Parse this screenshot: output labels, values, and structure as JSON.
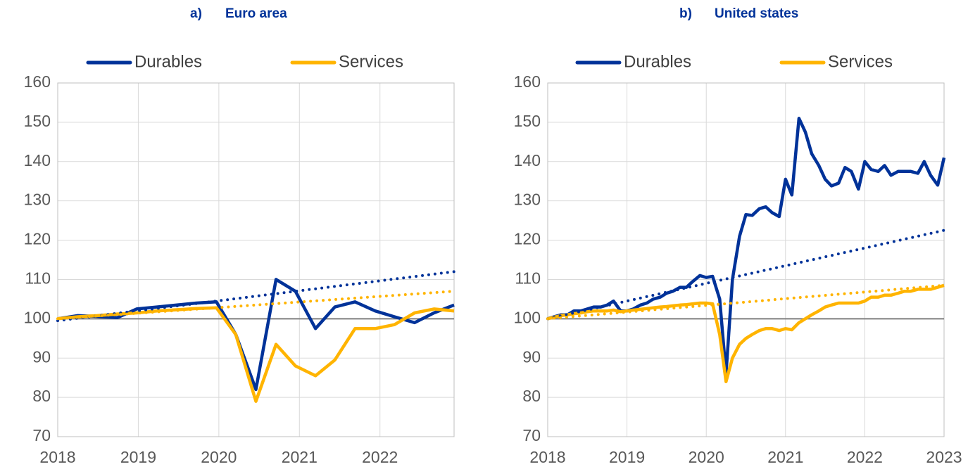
{
  "chart_data": [
    {
      "type": "line",
      "label": "a)",
      "title": "Euro area",
      "x": [
        2018,
        2018.25,
        2018.49,
        2018.74,
        2018.98,
        2019.23,
        2019.48,
        2019.72,
        2019.97,
        2020.21,
        2020.46,
        2020.71,
        2020.95,
        2021.2,
        2021.44,
        2021.69,
        2021.94,
        2022.18,
        2022.43,
        2022.67,
        2022.92
      ],
      "series": [
        {
          "name": "Durables",
          "color": "#003299",
          "values": [
            100,
            100.8,
            100.6,
            100.3,
            102.5,
            103,
            103.5,
            104,
            104.3,
            96,
            82,
            110,
            107,
            97.5,
            103,
            104.3,
            102,
            100.5,
            99,
            101.5,
            103.5
          ]
        },
        {
          "name": "Services",
          "color": "#FFB400",
          "values": [
            100,
            100.5,
            100.8,
            101.2,
            101.5,
            102,
            102.3,
            102.6,
            102.8,
            96,
            79,
            93.5,
            88,
            85.5,
            89.5,
            97.5,
            97.5,
            98.5,
            101.5,
            102.5,
            102
          ]
        },
        {
          "color": "#003299",
          "dash": "dotted",
          "x": [
            2018,
            2022.92
          ],
          "values": [
            99.5,
            112
          ]
        },
        {
          "color": "#FFB400",
          "dash": "dotted",
          "x": [
            2018,
            2022.92
          ],
          "values": [
            100,
            107
          ]
        }
      ],
      "xlim": [
        2018,
        2022.92
      ],
      "xticks": [
        2018,
        2019,
        2020,
        2021,
        2022
      ],
      "ylim": [
        70,
        160
      ],
      "yticks": [
        70,
        80,
        90,
        100,
        110,
        120,
        130,
        140,
        150,
        160
      ],
      "baseline": 100,
      "grid": true
    },
    {
      "type": "line",
      "label": "b)",
      "title": "United states",
      "x": [
        2018,
        2018.08,
        2018.17,
        2018.25,
        2018.33,
        2018.42,
        2018.5,
        2018.58,
        2018.67,
        2018.75,
        2018.83,
        2018.92,
        2019,
        2019.08,
        2019.17,
        2019.25,
        2019.33,
        2019.42,
        2019.5,
        2019.58,
        2019.67,
        2019.75,
        2019.83,
        2019.92,
        2020,
        2020.08,
        2020.17,
        2020.25,
        2020.33,
        2020.42,
        2020.5,
        2020.58,
        2020.67,
        2020.75,
        2020.83,
        2020.92,
        2021,
        2021.08,
        2021.17,
        2021.25,
        2021.33,
        2021.42,
        2021.5,
        2021.58,
        2021.67,
        2021.75,
        2021.83,
        2021.92,
        2022,
        2022.08,
        2022.17,
        2022.25,
        2022.33,
        2022.42,
        2022.5,
        2022.58,
        2022.67,
        2022.75,
        2022.83,
        2022.92,
        2023
      ],
      "series": [
        {
          "name": "Durables",
          "color": "#003299",
          "values": [
            100,
            100.5,
            101,
            101,
            102,
            102,
            102.5,
            103,
            103,
            103.5,
            104.5,
            102,
            102,
            102.5,
            103.5,
            104,
            105,
            105.5,
            106.5,
            107,
            108,
            108,
            109.5,
            111,
            110.5,
            110.8,
            105,
            86,
            110,
            121,
            126.5,
            126.3,
            128,
            128.5,
            127,
            126,
            135.5,
            131.5,
            151,
            147.5,
            142,
            139,
            135.5,
            133.8,
            134.5,
            138.5,
            137.5,
            133,
            140,
            138,
            137.5,
            139,
            136.5,
            137.5,
            137.5,
            137.5,
            137,
            140,
            136.5,
            134,
            141
          ]
        },
        {
          "name": "Services",
          "color": "#FFB400",
          "values": [
            100,
            100.4,
            100.8,
            101,
            101.3,
            101.5,
            101.8,
            102,
            102,
            102,
            102.2,
            101.8,
            102,
            102.2,
            102.4,
            102.6,
            102.8,
            103,
            103.1,
            103.3,
            103.5,
            103.6,
            103.8,
            104,
            104,
            103.8,
            96,
            84,
            90,
            93.5,
            95,
            96,
            97,
            97.5,
            97.5,
            97,
            97.5,
            97.2,
            99,
            100,
            101,
            102,
            103,
            103.5,
            104,
            104,
            104,
            104,
            104.5,
            105.5,
            105.5,
            106,
            106,
            106.5,
            107,
            107,
            107.5,
            107.5,
            107.5,
            108,
            108.5
          ]
        },
        {
          "color": "#003299",
          "dash": "dotted",
          "x": [
            2018,
            2023
          ],
          "values": [
            100,
            122.5
          ]
        },
        {
          "color": "#FFB400",
          "dash": "dotted",
          "x": [
            2018,
            2023
          ],
          "values": [
            100,
            108.5
          ]
        }
      ],
      "xlim": [
        2018,
        2023
      ],
      "xticks": [
        2018,
        2019,
        2020,
        2021,
        2022,
        2023
      ],
      "ylim": [
        70,
        160
      ],
      "yticks": [
        70,
        80,
        90,
        100,
        110,
        120,
        130,
        140,
        150,
        160
      ],
      "baseline": 100,
      "grid": true
    }
  ]
}
